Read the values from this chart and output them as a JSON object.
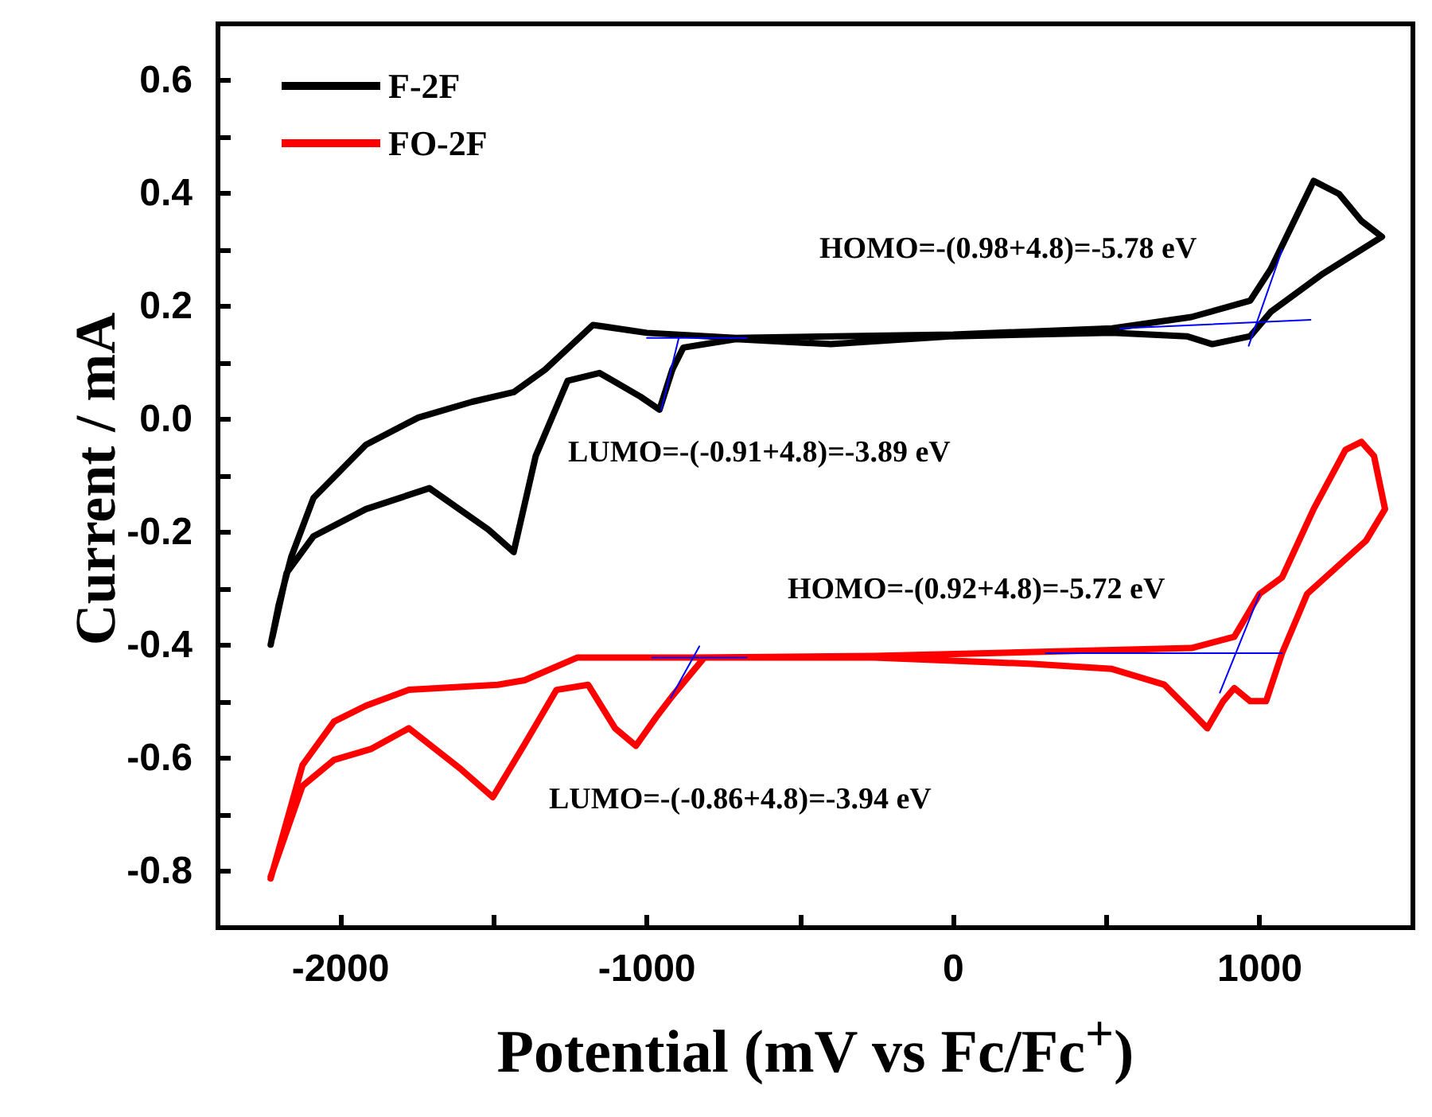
{
  "chart_data": {
    "type": "line",
    "xlabel": "Potential (mV vs Fc/Fc$^{+}$)",
    "ylabel": "Current / mA",
    "xlim": [
      -2400,
      1500
    ],
    "xticks": [
      -2000,
      {
        "value": -1500,
        "label": null
      },
      -1000,
      {
        "value": -500,
        "label": null
      },
      0,
      {
        "value": 500,
        "label": null
      },
      1000
    ],
    "ylim": [
      -0.9,
      0.7
    ],
    "yticks": [
      -0.8,
      {
        "value": -0.7,
        "label": null
      },
      -0.6,
      {
        "value": -0.5,
        "label": null
      },
      -0.4,
      {
        "value": -0.3,
        "label": null
      },
      -0.2,
      {
        "value": -0.1,
        "label": null
      },
      {
        "value": 0,
        "label": "0.0"
      },
      {
        "value": 0.1,
        "label": null
      },
      0.2,
      {
        "value": 0.3,
        "label": null
      },
      0.4,
      {
        "value": 0.5,
        "label": null
      },
      0.6
    ],
    "legend": "top left",
    "line_style": "solid",
    "series": [
      {
        "name": "F-2F",
        "color": "#000000",
        "x": [
          -2228,
          -2202,
          -2161,
          -2088,
          -1917,
          -1746,
          -1570,
          -1435,
          -1332,
          -1176,
          -1000,
          -710,
          0,
          518,
          777,
          969,
          1036,
          1176,
          1259,
          1332,
          1399,
          1207,
          1036,
          969,
          845,
          762,
          518,
          0,
          -399,
          -710,
          -881,
          -917,
          -959,
          -1021,
          -1155,
          -1259,
          -1363,
          -1435,
          -1518,
          -1710,
          -1917,
          -2088,
          -2176,
          -2222
        ],
        "values": [
          -0.399,
          -0.329,
          -0.244,
          -0.139,
          -0.045,
          0.003,
          0.031,
          0.048,
          0.088,
          0.167,
          0.153,
          0.144,
          0.15,
          0.161,
          0.181,
          0.21,
          0.266,
          0.422,
          0.399,
          0.351,
          0.323,
          0.258,
          0.19,
          0.147,
          0.133,
          0.147,
          0.153,
          0.147,
          0.133,
          0.142,
          0.127,
          0.088,
          0.017,
          0.04,
          0.082,
          0.068,
          -0.065,
          -0.235,
          -0.195,
          -0.122,
          -0.159,
          -0.207,
          -0.272,
          -0.385
        ]
      },
      {
        "name": "FO-2F",
        "color": "#ff0000",
        "x": [
          -2228,
          -2124,
          -2021,
          -1917,
          -1777,
          -1487,
          -1399,
          -1228,
          -845,
          -259,
          777,
          917,
          1000,
          1073,
          1176,
          1280,
          1332,
          1373,
          1409,
          1347,
          1155,
          1073,
          1021,
          969,
          917,
          881,
          829,
          777,
          689,
          518,
          259,
          -259,
          -813,
          -917,
          -969,
          -1036,
          -1104,
          -1192,
          -1295,
          -1399,
          -1503,
          -1606,
          -1777,
          -1902,
          -2021,
          -2124,
          -2228
        ],
        "values": [
          -0.813,
          -0.612,
          -0.535,
          -0.507,
          -0.479,
          -0.47,
          -0.462,
          -0.422,
          -0.422,
          -0.419,
          -0.405,
          -0.385,
          -0.309,
          -0.28,
          -0.159,
          -0.054,
          -0.04,
          -0.065,
          -0.159,
          -0.215,
          -0.309,
          -0.414,
          -0.499,
          -0.499,
          -0.476,
          -0.499,
          -0.547,
          -0.518,
          -0.47,
          -0.442,
          -0.433,
          -0.422,
          -0.422,
          -0.49,
          -0.527,
          -0.578,
          -0.547,
          -0.47,
          -0.479,
          -0.575,
          -0.669,
          -0.62,
          -0.547,
          -0.584,
          -0.603,
          -0.649,
          -0.81
        ]
      },
      {
        "color": "#0000ff",
        "x": [
          -1000,
          -674
        ],
        "values": [
          0.144,
          0.144
        ]
      },
      {
        "color": "#0000ff",
        "x": [
          -953,
          -896
        ],
        "values": [
          0.017,
          0.144
        ]
      },
      {
        "color": "#0000ff",
        "x": [
          544,
          1166
        ],
        "values": [
          0.161,
          0.176
        ]
      },
      {
        "color": "#0000ff",
        "x": [
          964,
          1073
        ],
        "values": [
          0.13,
          0.3
        ]
      },
      {
        "color": "#0000ff",
        "x": [
          -984,
          -674
        ],
        "values": [
          -0.422,
          -0.422
        ]
      },
      {
        "color": "#0000ff",
        "x": [
          -922,
          -829
        ],
        "values": [
          -0.493,
          -0.402
        ]
      },
      {
        "color": "#0000ff",
        "x": [
          301,
          1073
        ],
        "values": [
          -0.414,
          -0.414
        ]
      },
      {
        "color": "#0000ff",
        "x": [
          870,
          1000
        ],
        "values": [
          -0.484,
          -0.309
        ]
      }
    ],
    "annotations": [
      "HOMO=-(0.98+4.8)=-5.78 eV",
      "LUMO=-(-0.91+4.8)=-3.89 eV",
      "HOMO=-(0.92+4.8)=-5.72 eV",
      "LUMO=-(-0.86+4.8)=-3.94 eV"
    ]
  }
}
